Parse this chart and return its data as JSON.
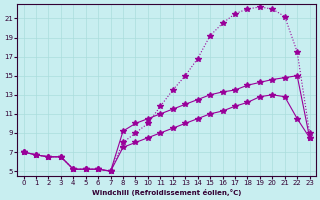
{
  "xlabel": "Windchill (Refroidissement éolien,°C)",
  "ylabel": "",
  "bg_color": "#c8eef0",
  "grid_color": "#aadddd",
  "line_color": "#990099",
  "xlim": [
    0,
    23
  ],
  "ylim": [
    4.5,
    22.5
  ],
  "xticks": [
    0,
    1,
    2,
    3,
    4,
    5,
    6,
    7,
    8,
    9,
    10,
    11,
    12,
    13,
    14,
    15,
    16,
    17,
    18,
    19,
    20,
    21,
    22,
    23
  ],
  "yticks": [
    5,
    7,
    9,
    11,
    13,
    15,
    17,
    19,
    21
  ],
  "line1_x": [
    0,
    1,
    2,
    3,
    4,
    5,
    6,
    7,
    8,
    9,
    10,
    11,
    12,
    13,
    14,
    15,
    16,
    17,
    18,
    19,
    20,
    21,
    22,
    23
  ],
  "line1_y": [
    7.0,
    6.7,
    6.5,
    6.5,
    5.2,
    5.2,
    5.2,
    5.0,
    9.2,
    10.0,
    10.5,
    11.0,
    11.5,
    12.0,
    12.5,
    13.0,
    13.3,
    13.5,
    14.0,
    14.3,
    14.6,
    14.8,
    15.0,
    8.5
  ],
  "line2_x": [
    0,
    1,
    2,
    3,
    4,
    5,
    6,
    7,
    8,
    9,
    10,
    11,
    12,
    13,
    14,
    15,
    16,
    17,
    18,
    19,
    20,
    21,
    22,
    23
  ],
  "line2_y": [
    7.0,
    6.7,
    6.5,
    6.5,
    5.2,
    5.2,
    5.2,
    5.0,
    8.0,
    9.0,
    10.0,
    11.8,
    13.5,
    15.0,
    16.8,
    19.2,
    20.5,
    21.5,
    22.0,
    22.2,
    22.0,
    21.2,
    17.5,
    9.0
  ],
  "line3_x": [
    0,
    1,
    2,
    3,
    4,
    5,
    6,
    7,
    8,
    9,
    10,
    11,
    12,
    13,
    14,
    15,
    16,
    17,
    18,
    19,
    20,
    21,
    22,
    23
  ],
  "line3_y": [
    7.0,
    6.7,
    6.5,
    6.5,
    5.2,
    5.2,
    5.2,
    5.0,
    7.5,
    8.0,
    8.5,
    9.0,
    9.5,
    10.0,
    10.5,
    11.0,
    11.3,
    11.8,
    12.2,
    12.8,
    13.0,
    12.8,
    10.5,
    8.5
  ]
}
